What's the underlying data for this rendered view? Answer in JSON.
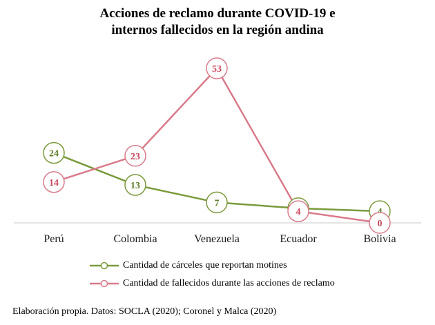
{
  "title_lines": [
    "Acciones de reclamo durante COVID-19 e",
    "internos fallecidos en la región andina"
  ],
  "source": "Elaboración propia. Datos: SOCLA (2020); Coronel y Malca (2020)",
  "colors": {
    "series1": "#7a9a3a",
    "series2": "#d97a8a",
    "axis": "#c8c8c8"
  },
  "chart_data": {
    "type": "line",
    "title": "Acciones de reclamo durante COVID-19 e internos fallecidos en la región andina",
    "categories": [
      "Perú",
      "Colombia",
      "Venezuela",
      "Ecuador",
      "Bolivia"
    ],
    "series": [
      {
        "name": "Cantidad de cárceles que reportan motines",
        "values": [
          24,
          13,
          7,
          5,
          4
        ]
      },
      {
        "name": "Cantidad de fallecidos durante las acciones de reclamo",
        "values": [
          14,
          23,
          53,
          4,
          0
        ]
      }
    ],
    "ylim": [
      0,
      53
    ],
    "grid": false,
    "legend_position": "bottom"
  }
}
